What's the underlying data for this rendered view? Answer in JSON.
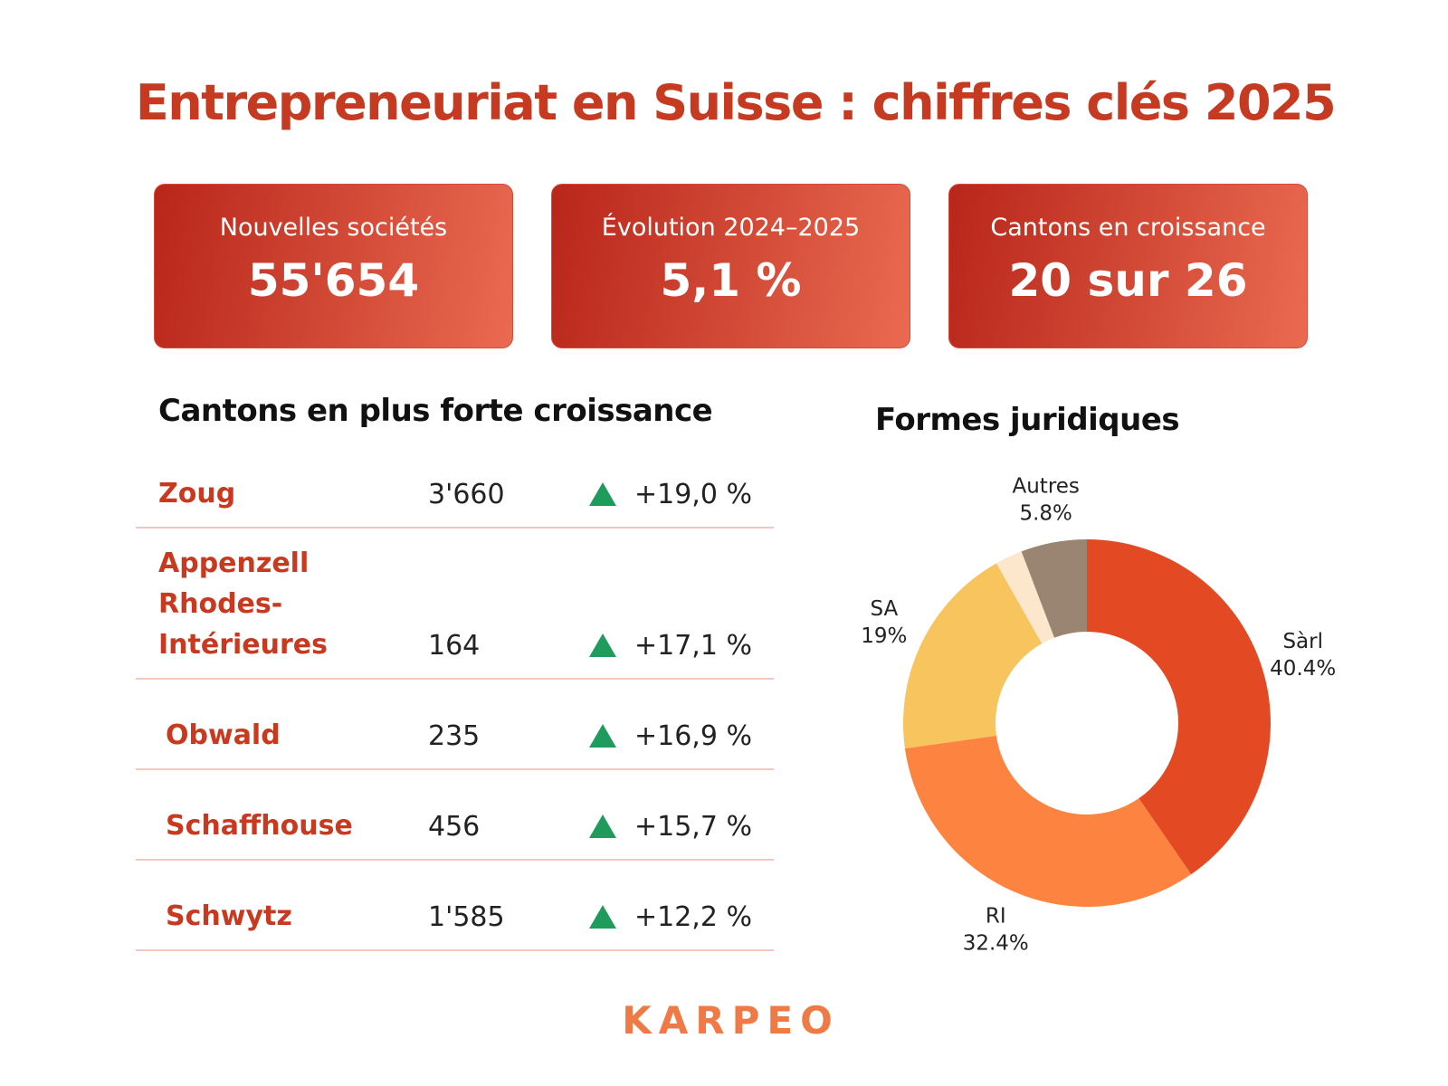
{
  "header": {
    "title": "Entrepreneuriat en Suisse : chiffres clés 2025"
  },
  "kpis": [
    {
      "label": "Nouvelles sociétés",
      "value": "55'654"
    },
    {
      "label": "Évolution 2024–2025",
      "value": "5,1 %"
    },
    {
      "label": "Cantons en croissance",
      "value": "20 sur 26"
    }
  ],
  "table": {
    "title": "Cantons en plus forte croissance",
    "rows": [
      {
        "canton": "Zoug",
        "count": "3'660",
        "change": "+19,0 %"
      },
      {
        "canton": "Appenzell Rhodes-Intérieures",
        "count": "164",
        "change": "+17,1 %"
      },
      {
        "canton": "Obwald",
        "count": "235",
        "change": "+16,9 %"
      },
      {
        "canton": "Schaffhouse",
        "count": "456",
        "change": "+15,7 %"
      },
      {
        "canton": "Schwytz",
        "count": "1'585",
        "change": "+12,2 %"
      }
    ]
  },
  "chart_data": {
    "type": "pie",
    "title": "Formes juridiques",
    "categories": [
      "Sàrl",
      "RI",
      "SA",
      null,
      "Autres"
    ],
    "values": [
      40.4,
      32.4,
      19,
      2.4,
      5.8
    ],
    "value_labels": [
      "40.4%",
      "32.4%",
      "19%",
      null,
      "5.8%"
    ],
    "colors": [
      "#e34a24",
      "#fd8440",
      "#f8c45e",
      "#fce6cc",
      "#9a8572"
    ]
  },
  "logo": "KARPEO"
}
